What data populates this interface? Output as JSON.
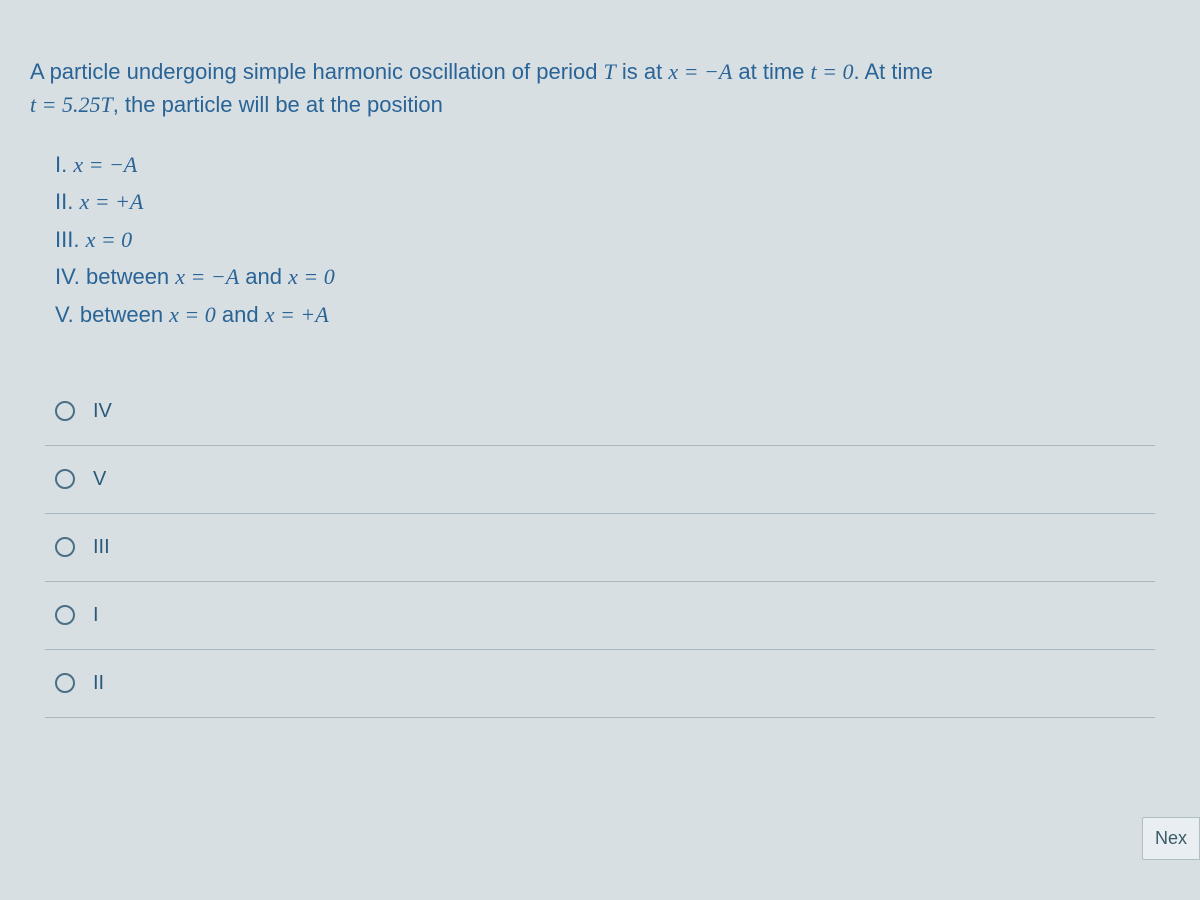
{
  "question": {
    "line1_part1": "A particle undergoing simple harmonic oscillation of period ",
    "line1_T": "T",
    "line1_part2": " is at ",
    "line1_eq1": "x = −A",
    "line1_part3": " at time ",
    "line1_eq2": "t = 0",
    "line1_part4": ". At time",
    "line2_eq": "t = 5.25T",
    "line2_part": ", the particle will be at the position"
  },
  "statements": {
    "s1_label": "I. ",
    "s1_math": "x = −A",
    "s2_label": "II. ",
    "s2_math": "x = +A",
    "s3_label": "III. ",
    "s3_math": "x = 0",
    "s4_label": "IV. between ",
    "s4_math1": "x = −A",
    "s4_mid": " and ",
    "s4_math2": "x = 0",
    "s5_label": "V. between ",
    "s5_math1": "x = 0",
    "s5_mid": " and ",
    "s5_math2": "x = +A"
  },
  "options": [
    {
      "label": "IV"
    },
    {
      "label": "V"
    },
    {
      "label": "III"
    },
    {
      "label": "I"
    },
    {
      "label": "II"
    }
  ],
  "buttons": {
    "next": "Nex"
  },
  "colors": {
    "background": "#d8dfe3",
    "text": "#2a6496",
    "border": "#a8b8c0",
    "radio_border": "#4a7088"
  }
}
